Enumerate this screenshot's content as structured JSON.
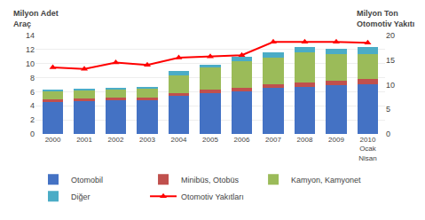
{
  "chart_data": {
    "type": "bar",
    "stacked": true,
    "categories": [
      "2000",
      "2001",
      "2002",
      "2003",
      "2004",
      "2005",
      "2006",
      "2007",
      "2008",
      "2009",
      "2010\nOcak\nNisan"
    ],
    "ylabel": "Milyon Adet\nAraç",
    "y2label": "Milyon Ton\nOtomotiv Yakıtı",
    "series": [
      {
        "name": "Otomobil",
        "type": "bar",
        "color": "#4472C4",
        "values": [
          4.6,
          4.7,
          4.8,
          4.8,
          5.4,
          5.8,
          6.1,
          6.5,
          6.7,
          6.9,
          7.1
        ]
      },
      {
        "name": "Minibüs, Otobüs",
        "type": "bar",
        "color": "#C0504D",
        "values": [
          0.35,
          0.35,
          0.35,
          0.35,
          0.45,
          0.45,
          0.45,
          0.6,
          0.65,
          0.7,
          0.75
        ]
      },
      {
        "name": "Kamyon, Kamyonet",
        "type": "bar",
        "color": "#9BBB59",
        "values": [
          1.2,
          1.2,
          1.25,
          1.25,
          2.5,
          3.2,
          3.8,
          3.8,
          4.3,
          3.7,
          3.5
        ]
      },
      {
        "name": "Diğer",
        "type": "bar",
        "color": "#4BACC6",
        "values": [
          0.2,
          0.2,
          0.2,
          0.3,
          0.55,
          0.45,
          0.65,
          0.65,
          0.65,
          0.85,
          1.05
        ]
      },
      {
        "name": "Otomotiv Yakıtları",
        "type": "line",
        "axis": "y2",
        "color": "#FF0000",
        "marker": "triangle-up",
        "values": [
          13.5,
          13.2,
          14.5,
          14.0,
          15.5,
          15.7,
          16.0,
          18.7,
          18.7,
          18.7,
          18.5
        ]
      }
    ],
    "ylim": [
      0,
      14
    ],
    "yticks": [
      0,
      2,
      4,
      6,
      8,
      10,
      12,
      14
    ],
    "y2lim": [
      0,
      20
    ],
    "y2ticks": [
      0,
      5,
      10,
      15,
      20
    ],
    "grid": true,
    "legend": "bottom"
  }
}
